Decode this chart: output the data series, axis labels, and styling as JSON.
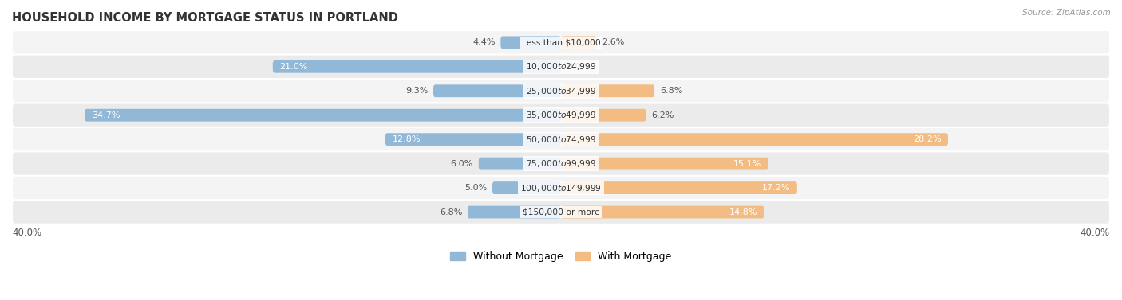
{
  "title": "HOUSEHOLD INCOME BY MORTGAGE STATUS IN PORTLAND",
  "source": "Source: ZipAtlas.com",
  "categories": [
    "Less than $10,000",
    "$10,000 to $24,999",
    "$25,000 to $34,999",
    "$35,000 to $49,999",
    "$50,000 to $74,999",
    "$75,000 to $99,999",
    "$100,000 to $149,999",
    "$150,000 or more"
  ],
  "without_mortgage": [
    4.4,
    21.0,
    9.3,
    34.7,
    12.8,
    6.0,
    5.0,
    6.8
  ],
  "with_mortgage": [
    2.6,
    0.0,
    6.8,
    6.2,
    28.2,
    15.1,
    17.2,
    14.8
  ],
  "without_mortgage_color": "#92b8d8",
  "with_mortgage_color": "#f2bc82",
  "row_bg_light": "#f4f4f4",
  "row_bg_dark": "#ebebeb",
  "axis_limit": 40.0,
  "title_fontsize": 10.5,
  "label_fontsize": 8.0,
  "tick_fontsize": 8.5,
  "legend_fontsize": 9,
  "bar_height": 0.52
}
